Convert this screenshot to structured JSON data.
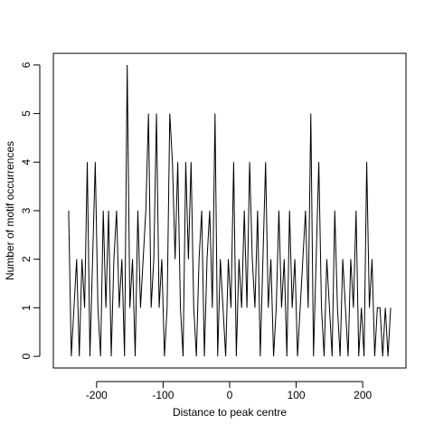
{
  "chart_data": {
    "type": "line",
    "xlabel": "Distance to peak centre",
    "ylabel": "Number of motif occurrences",
    "x": [
      -242,
      -238,
      -234,
      -230,
      -226,
      -222,
      -218,
      -214,
      -210,
      -206,
      -202,
      -198,
      -194,
      -190,
      -186,
      -182,
      -178,
      -174,
      -170,
      -166,
      -162,
      -158,
      -154,
      -150,
      -146,
      -142,
      -138,
      -134,
      -130,
      -126,
      -122,
      -118,
      -114,
      -110,
      -106,
      -102,
      -98,
      -94,
      -90,
      -86,
      -82,
      -78,
      -74,
      -70,
      -66,
      -62,
      -58,
      -54,
      -50,
      -46,
      -42,
      -38,
      -34,
      -30,
      -26,
      -22,
      -18,
      -14,
      -10,
      -6,
      -2,
      2,
      6,
      10,
      14,
      18,
      22,
      26,
      30,
      34,
      38,
      42,
      46,
      50,
      54,
      58,
      62,
      66,
      70,
      74,
      78,
      82,
      86,
      90,
      94,
      98,
      102,
      106,
      110,
      114,
      118,
      122,
      126,
      130,
      134,
      138,
      142,
      146,
      150,
      154,
      158,
      162,
      166,
      170,
      174,
      178,
      182,
      186,
      190,
      194,
      198,
      202,
      206,
      210,
      214,
      218,
      222,
      226,
      230,
      234,
      238,
      242
    ],
    "values": [
      3,
      0,
      1,
      2,
      0,
      2,
      1,
      4,
      0,
      2,
      4,
      1,
      0,
      3,
      1,
      3,
      0,
      2,
      3,
      1,
      2,
      0,
      6,
      1,
      2,
      0,
      3,
      1,
      2,
      3,
      5,
      1,
      2,
      5,
      1,
      2,
      0,
      1,
      5,
      4,
      2,
      4,
      1,
      0,
      4,
      2,
      4,
      1,
      0,
      2,
      3,
      0,
      2,
      3,
      1,
      5,
      0,
      2,
      1,
      0,
      2,
      1,
      4,
      0,
      2,
      1,
      3,
      1,
      4,
      2,
      1,
      3,
      0,
      2,
      4,
      1,
      2,
      0,
      1,
      3,
      1,
      2,
      0,
      3,
      1,
      2,
      0,
      1,
      2,
      3,
      1,
      5,
      0,
      2,
      4,
      1,
      0,
      2,
      1,
      0,
      3,
      1,
      0,
      2,
      1,
      0,
      2,
      1,
      3,
      0,
      1,
      0,
      4,
      1,
      2,
      0,
      1,
      1,
      0,
      1,
      0,
      1
    ],
    "color": "#000000",
    "xlim": [
      -265,
      265
    ],
    "ylim": [
      -0.24,
      6.24
    ],
    "xticks": [
      -200,
      -100,
      0,
      100,
      200
    ],
    "yticks": [
      0,
      1,
      2,
      3,
      4,
      5,
      6
    ]
  }
}
